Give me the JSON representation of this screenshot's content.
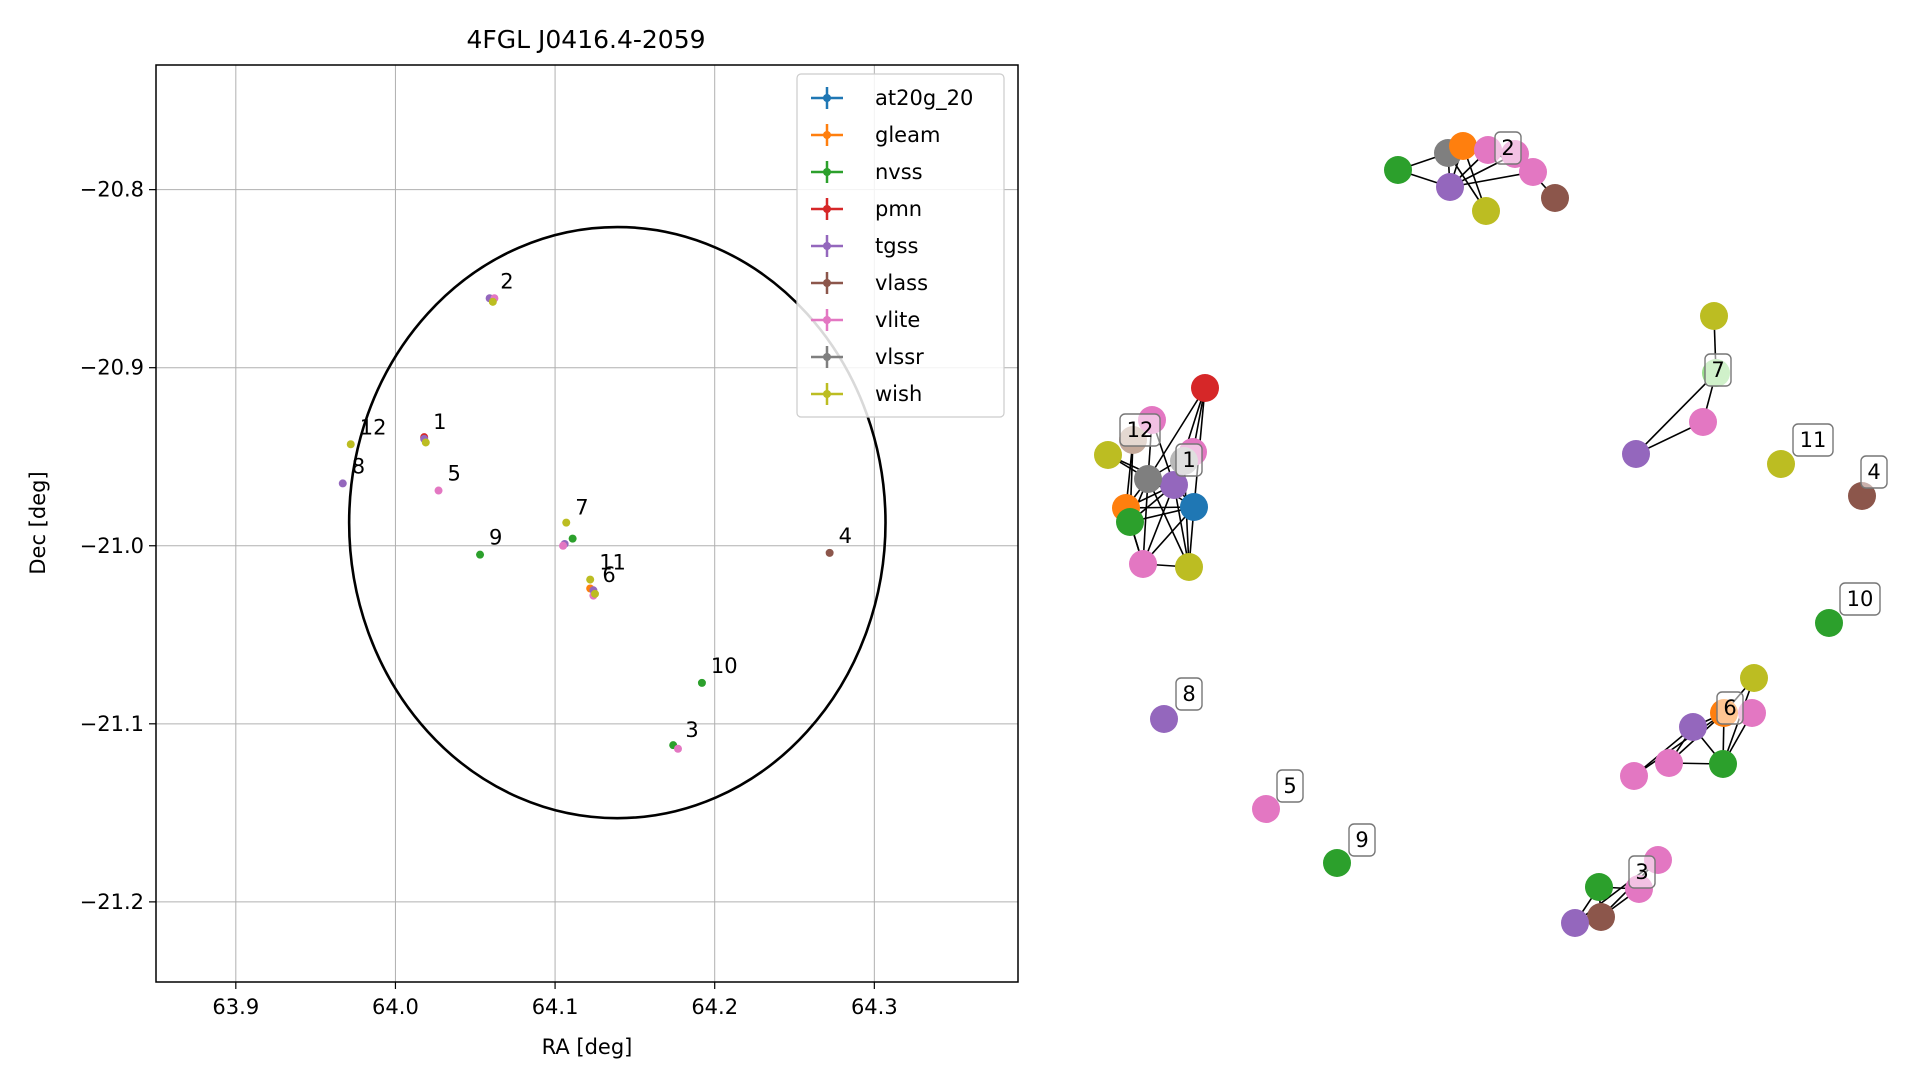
{
  "chart_data": [
    {
      "type": "scatter",
      "title": "4FGL J0416.4-2059",
      "xlabel": "RA [deg]",
      "ylabel": "Dec [deg]",
      "xlim": [
        63.85,
        64.39
      ],
      "ylim": [
        -21.245,
        -20.73
      ],
      "xticks": [
        63.9,
        64.0,
        64.1,
        64.2,
        64.3
      ],
      "xtick_labels": [
        "63.9",
        "64.0",
        "64.1",
        "64.2",
        "64.3"
      ],
      "yticks": [
        -20.8,
        -20.9,
        -21.0,
        -21.1,
        -21.2
      ],
      "ytick_labels": [
        "−20.8",
        "−20.9",
        "−21.0",
        "−21.1",
        "−21.2"
      ],
      "grid": true,
      "legend_position": "top-right",
      "ellipse": {
        "center_ra": 64.139,
        "center_dec": -20.987,
        "semi_axis_ra": 0.168,
        "semi_axis_dec": 0.166
      },
      "series": [
        {
          "name": "at20g_20",
          "color": "#1f77b4",
          "points": []
        },
        {
          "name": "gleam",
          "color": "#ff7f0e",
          "points": [
            [
              64.122,
              -21.024
            ]
          ]
        },
        {
          "name": "nvss",
          "color": "#2ca02c",
          "points": [
            [
              64.053,
              -21.005
            ],
            [
              64.111,
              -20.996
            ],
            [
              64.192,
              -21.077
            ],
            [
              64.174,
              -21.112
            ]
          ]
        },
        {
          "name": "pmn",
          "color": "#d62728",
          "points": [
            [
              64.018,
              -20.939
            ]
          ]
        },
        {
          "name": "tgss",
          "color": "#9467bd",
          "points": [
            [
              64.059,
              -20.861
            ],
            [
              64.018,
              -20.94
            ],
            [
              63.967,
              -20.965
            ],
            [
              64.106,
              -20.999
            ],
            [
              64.124,
              -21.025
            ]
          ]
        },
        {
          "name": "vlass",
          "color": "#8c564b",
          "points": [
            [
              64.272,
              -21.004
            ]
          ]
        },
        {
          "name": "vlite",
          "color": "#e377c2",
          "points": [
            [
              64.062,
              -20.861
            ],
            [
              64.027,
              -20.969
            ],
            [
              64.105,
              -21.0
            ],
            [
              64.124,
              -21.028
            ],
            [
              64.177,
              -21.114
            ]
          ]
        },
        {
          "name": "vlssr",
          "color": "#7f7f7f",
          "points": []
        },
        {
          "name": "wish",
          "color": "#bcbd22",
          "points": [
            [
              64.061,
              -20.863
            ],
            [
              63.972,
              -20.943
            ],
            [
              64.019,
              -20.942
            ],
            [
              64.107,
              -20.987
            ],
            [
              64.122,
              -21.019
            ],
            [
              64.125,
              -21.027
            ]
          ]
        }
      ],
      "labels": [
        {
          "text": "1",
          "ra": 64.018,
          "dec": -20.94
        },
        {
          "text": "2",
          "ra": 64.06,
          "dec": -20.861
        },
        {
          "text": "3",
          "ra": 64.176,
          "dec": -21.113
        },
        {
          "text": "4",
          "ra": 64.272,
          "dec": -21.004
        },
        {
          "text": "5",
          "ra": 64.027,
          "dec": -20.969
        },
        {
          "text": "6",
          "ra": 64.124,
          "dec": -21.026
        },
        {
          "text": "7",
          "ra": 64.107,
          "dec": -20.988
        },
        {
          "text": "8",
          "ra": 63.967,
          "dec": -20.965
        },
        {
          "text": "9",
          "ra": 64.053,
          "dec": -21.005
        },
        {
          "text": "10",
          "ra": 64.192,
          "dec": -21.077
        },
        {
          "text": "11",
          "ra": 64.122,
          "dec": -21.019
        },
        {
          "text": "12",
          "ra": 63.972,
          "dec": -20.943
        }
      ]
    },
    {
      "type": "network",
      "labels": [
        "1",
        "2",
        "3",
        "4",
        "5",
        "6",
        "7",
        "8",
        "9",
        "10",
        "11",
        "12"
      ],
      "note": "graph layout of the cross-matched sources, nodes colored by survey"
    }
  ]
}
